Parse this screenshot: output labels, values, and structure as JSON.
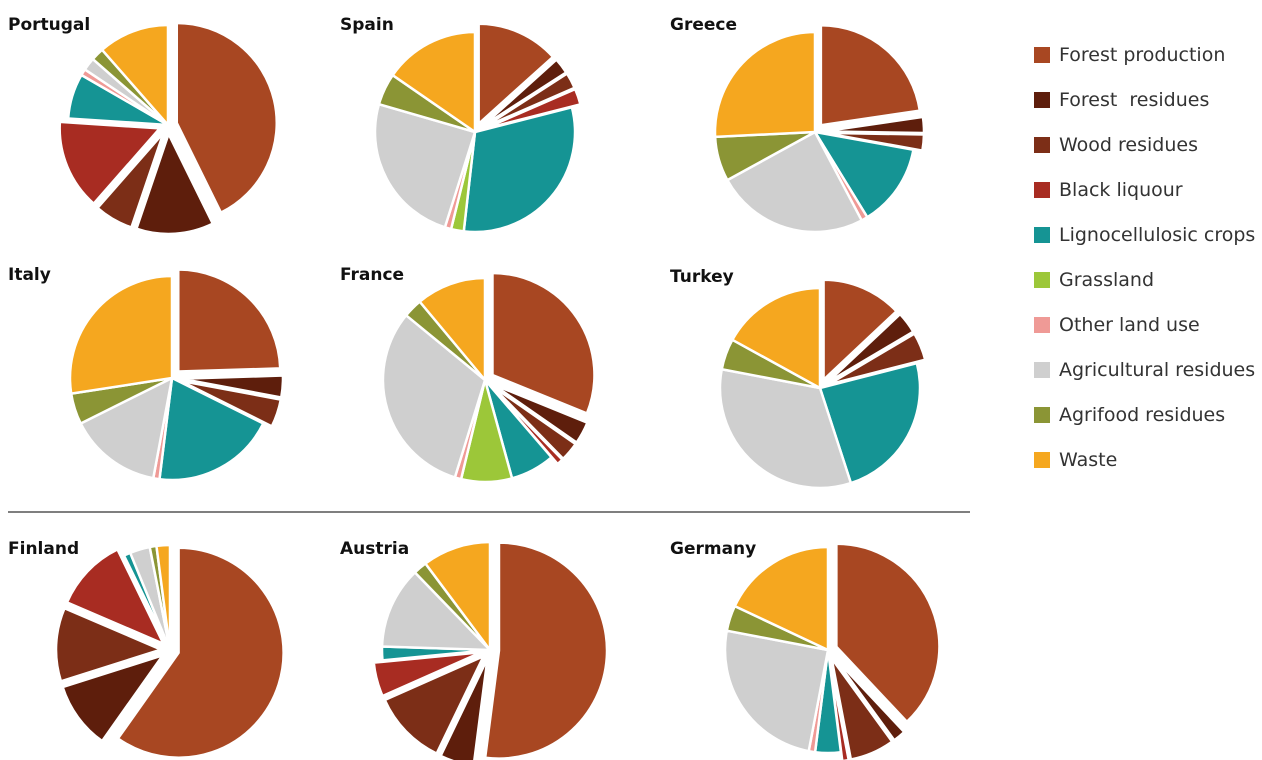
{
  "categories": [
    "Forest production",
    "Forest  residues",
    "Wood residues",
    "Black liquour",
    "Lignocellulosic crops",
    "Grassland",
    "Other land use",
    "Agricultural residues",
    "Agrifood residues",
    "Waste"
  ],
  "colors": [
    "#a84722",
    "#5e1e0c",
    "#7c2e17",
    "#a82c22",
    "#159494",
    "#9cc739",
    "#ef9a96",
    "#cfcfcf",
    "#8b9535",
    "#f5a71f"
  ],
  "chart_data": [
    {
      "type": "pie",
      "title": "Portugal",
      "values": [
        41,
        12,
        6,
        14,
        7,
        0,
        1,
        2,
        2,
        11
      ],
      "exploded": [
        0,
        1,
        2,
        3
      ]
    },
    {
      "type": "pie",
      "title": "Spain",
      "values": [
        13,
        2.5,
        2.5,
        2.5,
        30,
        2,
        1,
        24,
        5,
        15
      ],
      "exploded": [
        0,
        1,
        2,
        3
      ]
    },
    {
      "type": "pie",
      "title": "Greece",
      "values": [
        22,
        2.5,
        2.5,
        0,
        13,
        0,
        1,
        24,
        7,
        25
      ],
      "exploded": [
        0,
        1,
        2
      ]
    },
    {
      "type": "pie",
      "title": "Italy",
      "values": [
        25,
        3.5,
        4.5,
        0,
        20,
        0,
        1,
        15,
        5,
        28
      ],
      "exploded": [
        0,
        1,
        2
      ]
    },
    {
      "type": "pie",
      "title": "France",
      "values": [
        31,
        3.5,
        3,
        1,
        7,
        8,
        1,
        31,
        3,
        11
      ],
      "exploded": [
        0,
        1,
        2,
        3
      ]
    },
    {
      "type": "pie",
      "title": "Turkey",
      "values": [
        13,
        3.5,
        4.5,
        0,
        24,
        0,
        0,
        33,
        5,
        17
      ],
      "exploded": [
        0,
        1,
        2
      ]
    },
    {
      "type": "pie",
      "title": "Finland",
      "values": [
        58,
        10,
        11,
        11,
        1,
        0,
        0,
        3,
        1,
        2
      ],
      "exploded": [
        0,
        1,
        2,
        3
      ]
    },
    {
      "type": "pie",
      "title": "Austria",
      "values": [
        51,
        5,
        11,
        5,
        2,
        0,
        0,
        12,
        2,
        10
      ],
      "exploded": [
        0,
        1,
        2,
        3
      ]
    },
    {
      "type": "pie",
      "title": "Germany",
      "values": [
        38,
        2,
        7,
        1,
        4,
        0,
        1,
        25,
        4,
        18
      ],
      "exploded": [
        0,
        1,
        2,
        3
      ]
    }
  ]
}
